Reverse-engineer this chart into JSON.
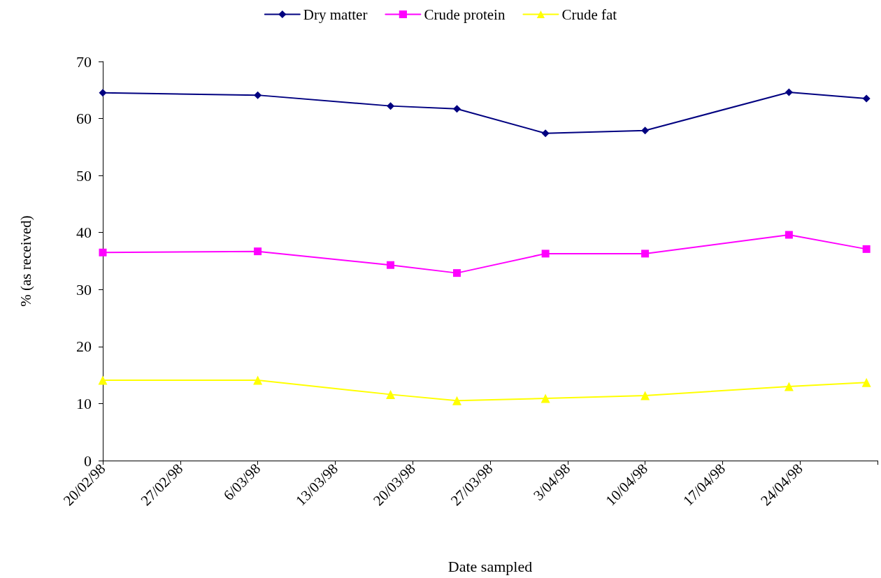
{
  "chart_data": {
    "type": "line",
    "xlabel": "Date sampled",
    "ylabel": "% (as received)",
    "x": [
      "1998-02-20",
      "1998-03-06",
      "1998-03-18",
      "1998-03-24",
      "1998-04-01",
      "1998-04-10",
      "1998-04-23",
      "1998-04-30"
    ],
    "series": [
      {
        "name": "Dry matter",
        "color": "#000080",
        "marker": "diamond",
        "values": [
          64.5,
          64.1,
          62.2,
          61.7,
          57.4,
          57.9,
          64.6,
          63.5
        ]
      },
      {
        "name": "Crude protein",
        "color": "#ff00ff",
        "marker": "square",
        "values": [
          36.5,
          36.7,
          34.3,
          32.9,
          36.3,
          36.3,
          39.6,
          37.1
        ]
      },
      {
        "name": "Crude fat",
        "color": "#ffff00",
        "marker": "triangle",
        "values": [
          14.1,
          14.1,
          11.6,
          10.5,
          10.9,
          11.4,
          13.0,
          13.7
        ]
      }
    ],
    "xlim": [
      "1998-02-20",
      "1998-05-01"
    ],
    "xticks": [
      {
        "value": "1998-02-20",
        "label": "20/02/98"
      },
      {
        "value": "1998-02-27",
        "label": "27/02/98"
      },
      {
        "value": "1998-03-06",
        "label": "6/03/98"
      },
      {
        "value": "1998-03-13",
        "label": "13/03/98"
      },
      {
        "value": "1998-03-20",
        "label": "20/03/98"
      },
      {
        "value": "1998-03-27",
        "label": "27/03/98"
      },
      {
        "value": "1998-04-03",
        "label": "3/04/98"
      },
      {
        "value": "1998-04-10",
        "label": "10/04/98"
      },
      {
        "value": "1998-04-17",
        "label": "17/04/98"
      },
      {
        "value": "1998-04-24",
        "label": "24/04/98"
      },
      {
        "value": "1998-05-01",
        "label": null
      }
    ],
    "ylim": [
      0,
      70
    ],
    "yticks": [
      0,
      10,
      20,
      30,
      40,
      50,
      60,
      70
    ],
    "grid": false,
    "legend": "top",
    "line_style": "solid"
  }
}
